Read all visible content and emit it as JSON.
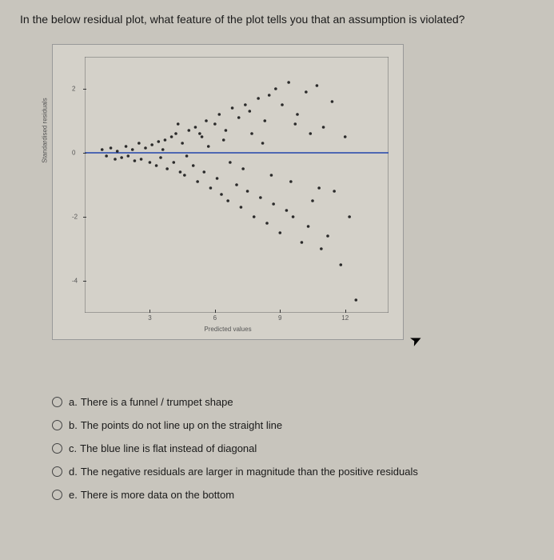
{
  "question": "In the below residual plot, what feature of the plot tells you that an assumption is violated?",
  "chart": {
    "type": "scatter",
    "xlabel": "Predicted values",
    "ylabel": "Standardised residuals",
    "xlim": [
      0,
      14
    ],
    "ylim": [
      -5,
      3
    ],
    "xticks": [
      3,
      6,
      9,
      12
    ],
    "yticks": [
      -4,
      -2,
      0,
      2
    ],
    "line_y": 0,
    "line_color": "#2244aa",
    "point_color": "#2a2a2a",
    "background": "#d4d1c9",
    "points": [
      [
        0.8,
        0.1
      ],
      [
        1.0,
        -0.1
      ],
      [
        1.2,
        0.15
      ],
      [
        1.4,
        -0.2
      ],
      [
        1.5,
        0.05
      ],
      [
        1.7,
        -0.15
      ],
      [
        1.9,
        0.2
      ],
      [
        2.0,
        -0.1
      ],
      [
        2.2,
        0.1
      ],
      [
        2.3,
        -0.25
      ],
      [
        2.5,
        0.3
      ],
      [
        2.6,
        -0.2
      ],
      [
        2.8,
        0.15
      ],
      [
        3.0,
        -0.3
      ],
      [
        3.1,
        0.25
      ],
      [
        3.3,
        -0.4
      ],
      [
        3.4,
        0.35
      ],
      [
        3.5,
        -0.15
      ],
      [
        3.7,
        0.4
      ],
      [
        3.8,
        -0.5
      ],
      [
        4.0,
        0.5
      ],
      [
        4.1,
        -0.3
      ],
      [
        4.2,
        0.6
      ],
      [
        4.4,
        -0.6
      ],
      [
        4.5,
        0.3
      ],
      [
        4.6,
        -0.7
      ],
      [
        4.8,
        0.7
      ],
      [
        5.0,
        -0.4
      ],
      [
        5.1,
        0.8
      ],
      [
        5.2,
        -0.9
      ],
      [
        5.4,
        0.5
      ],
      [
        5.5,
        -0.6
      ],
      [
        5.6,
        1.0
      ],
      [
        5.8,
        -1.1
      ],
      [
        6.0,
        0.9
      ],
      [
        6.1,
        -0.8
      ],
      [
        6.2,
        1.2
      ],
      [
        6.3,
        -1.3
      ],
      [
        6.5,
        0.7
      ],
      [
        6.6,
        -1.5
      ],
      [
        6.8,
        1.4
      ],
      [
        7.0,
        -1.0
      ],
      [
        7.1,
        1.1
      ],
      [
        7.2,
        -1.7
      ],
      [
        7.4,
        1.5
      ],
      [
        7.5,
        -1.2
      ],
      [
        7.6,
        1.3
      ],
      [
        7.8,
        -2.0
      ],
      [
        8.0,
        1.7
      ],
      [
        8.1,
        -1.4
      ],
      [
        8.3,
        1.0
      ],
      [
        8.4,
        -2.2
      ],
      [
        8.5,
        1.8
      ],
      [
        8.7,
        -1.6
      ],
      [
        8.8,
        2.0
      ],
      [
        9.0,
        -2.5
      ],
      [
        9.1,
        1.5
      ],
      [
        9.3,
        -1.8
      ],
      [
        9.4,
        2.2
      ],
      [
        9.6,
        -2.0
      ],
      [
        9.8,
        1.2
      ],
      [
        10.0,
        -2.8
      ],
      [
        10.2,
        1.9
      ],
      [
        10.3,
        -2.3
      ],
      [
        10.5,
        -1.5
      ],
      [
        10.7,
        2.1
      ],
      [
        10.9,
        -3.0
      ],
      [
        11.0,
        0.8
      ],
      [
        11.2,
        -2.6
      ],
      [
        11.4,
        1.6
      ],
      [
        11.5,
        -1.2
      ],
      [
        11.8,
        -3.5
      ],
      [
        12.0,
        0.5
      ],
      [
        12.2,
        -2.0
      ],
      [
        12.5,
        -4.6
      ],
      [
        4.3,
        0.9
      ],
      [
        5.3,
        0.6
      ],
      [
        6.4,
        0.4
      ],
      [
        7.3,
        -0.5
      ],
      [
        8.2,
        0.3
      ],
      [
        9.5,
        -0.9
      ],
      [
        10.4,
        0.6
      ],
      [
        3.6,
        0.1
      ],
      [
        4.7,
        -0.1
      ],
      [
        5.7,
        0.2
      ],
      [
        6.7,
        -0.3
      ],
      [
        7.7,
        0.6
      ],
      [
        8.6,
        -0.7
      ],
      [
        9.7,
        0.9
      ],
      [
        10.8,
        -1.1
      ]
    ]
  },
  "options": [
    {
      "letter": "a.",
      "text": "There is a funnel / trumpet shape"
    },
    {
      "letter": "b.",
      "text": "The points do not line up on the straight line"
    },
    {
      "letter": "c.",
      "text": "The blue line is flat instead of diagonal"
    },
    {
      "letter": "d.",
      "text": "The negative residuals are larger in magnitude than the positive residuals"
    },
    {
      "letter": "e.",
      "text": "There is more data on the bottom"
    }
  ]
}
